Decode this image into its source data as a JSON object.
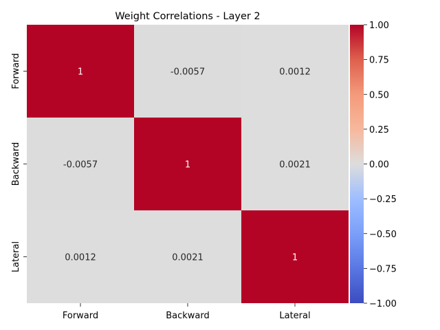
{
  "chart_data": {
    "type": "heatmap",
    "title": "Weight Correlations - Layer 2",
    "x_labels": [
      "Forward",
      "Backward",
      "Lateral"
    ],
    "y_labels": [
      "Forward",
      "Backward",
      "Lateral"
    ],
    "values": [
      [
        1,
        -0.0057,
        0.0012
      ],
      [
        -0.0057,
        1,
        0.0021
      ],
      [
        0.0012,
        0.0021,
        1
      ]
    ],
    "cell_labels": [
      [
        "1",
        "-0.0057",
        "0.0012"
      ],
      [
        "-0.0057",
        "1",
        "0.0021"
      ],
      [
        "0.0012",
        "0.0021",
        "1"
      ]
    ],
    "colormap": "coolwarm",
    "vmin": -1,
    "vmax": 1,
    "colorbar_ticks": [
      "1.00",
      "0.75",
      "0.50",
      "0.25",
      "0.00",
      "−0.25",
      "−0.50",
      "−0.75",
      "−1.00"
    ],
    "colorbar_values": [
      1,
      0.75,
      0.5,
      0.25,
      0,
      -0.25,
      -0.5,
      -0.75,
      -1
    ],
    "colors": {
      "high": "#b40426",
      "mid": "#dddddd",
      "low": "#3b4cc0"
    }
  }
}
